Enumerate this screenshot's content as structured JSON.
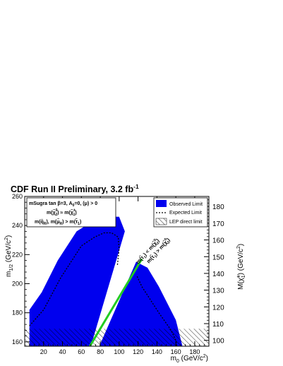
{
  "chart_data": {
    "type": "area",
    "title_main": "CDF Run II Preliminary, 3.2 fb",
    "title_sup": "-1",
    "xlabel": "m",
    "xlabel_sub": "0",
    "xlabel_unit": " (GeV/c",
    "xlabel_unit_sup": "2",
    "xlabel_unit_end": ")",
    "ylabel": "m",
    "ylabel_sub": "1/2",
    "ylabel_unit": " (GeV/c",
    "ylabel_unit_sup": "2",
    "ylabel_unit_end": ")",
    "y2label": "M(χ̃",
    "y2label_sub": "1",
    "y2label_sup": "±",
    "y2label_unit": ") (GeV/c",
    "y2label_unit_sup": "2",
    "y2label_unit_end": ")",
    "xlim": [
      0,
      195
    ],
    "ylim": [
      157,
      260
    ],
    "y2lim": [
      96.5,
      186
    ],
    "x_ticks": [
      20,
      40,
      60,
      80,
      100,
      120,
      140,
      160,
      180
    ],
    "y_ticks": [
      160,
      180,
      200,
      220,
      240,
      260
    ],
    "y2_ticks": [
      100,
      110,
      120,
      130,
      140,
      150,
      160,
      170,
      180
    ],
    "info_box": {
      "line1": "mSugra tan β=3, A",
      "line1_sub": "0",
      "line1_end": "=0, (μ) > 0",
      "line2": "m(χ̃",
      "line2_sub_a": "2",
      "line2_sup_a": "0",
      "line2_mid": ") ≈ m(χ̃",
      "line2_sub_b": "1",
      "line2_sup_b": "±",
      "line2_end": ")",
      "line3": "m(q̃",
      "line3_sub_a": "R",
      "line3_mid": "), m(μ̃",
      "line3_sub_b": "R",
      "line3_end": ") > m(τ̃",
      "line3_sub_c": "1",
      "line3_close": ")"
    },
    "legend": [
      {
        "label": "Observed Limit",
        "style": "fill",
        "color": "#0000ee"
      },
      {
        "label": "Expected Limit",
        "style": "dashed",
        "color": "#000000"
      },
      {
        "label": "LEP direct limit",
        "style": "hatch",
        "color": "#000000"
      }
    ],
    "divider_labels": {
      "left": "m(τ̃",
      "left_sub": "1",
      "left_mid": ") < m(χ̃",
      "left_sub2": "2",
      "left_sup2": "0",
      "left_end": ")",
      "right": "m(τ̃",
      "right_sub": "1",
      "right_mid": ") > m(χ̃",
      "right_sub2": "2",
      "right_sup2": "0",
      "right_end": ")"
    },
    "observed_left_region": [
      [
        5,
        157
      ],
      [
        5,
        182
      ],
      [
        18,
        194
      ],
      [
        35,
        216
      ],
      [
        55,
        236
      ],
      [
        70,
        242
      ],
      [
        80,
        245
      ],
      [
        92,
        246
      ],
      [
        100,
        246
      ],
      [
        106,
        236
      ],
      [
        70,
        157
      ]
    ],
    "observed_right_region": [
      [
        79,
        157
      ],
      [
        118,
        215
      ],
      [
        130,
        211
      ],
      [
        142,
        198
      ],
      [
        160,
        175
      ],
      [
        167,
        157
      ]
    ],
    "expected_left_curve": [
      [
        5,
        171
      ],
      [
        20,
        182
      ],
      [
        38,
        204
      ],
      [
        60,
        226
      ],
      [
        74,
        232
      ],
      [
        84,
        235
      ],
      [
        92,
        235
      ],
      [
        99,
        232
      ],
      [
        100,
        224
      ],
      [
        98,
        212
      ]
    ],
    "expected_right_curve": [
      [
        119,
        205
      ],
      [
        124,
        198
      ],
      [
        132,
        190
      ],
      [
        142,
        180
      ],
      [
        155,
        168
      ],
      [
        160,
        161
      ],
      [
        161,
        157
      ]
    ],
    "divider_line": [
      [
        69,
        157
      ],
      [
        124,
        217
      ]
    ],
    "lep_limit_y": 169,
    "colors": {
      "observed": "#0000ee",
      "divider": "#22cc22",
      "frame": "#000000"
    }
  }
}
